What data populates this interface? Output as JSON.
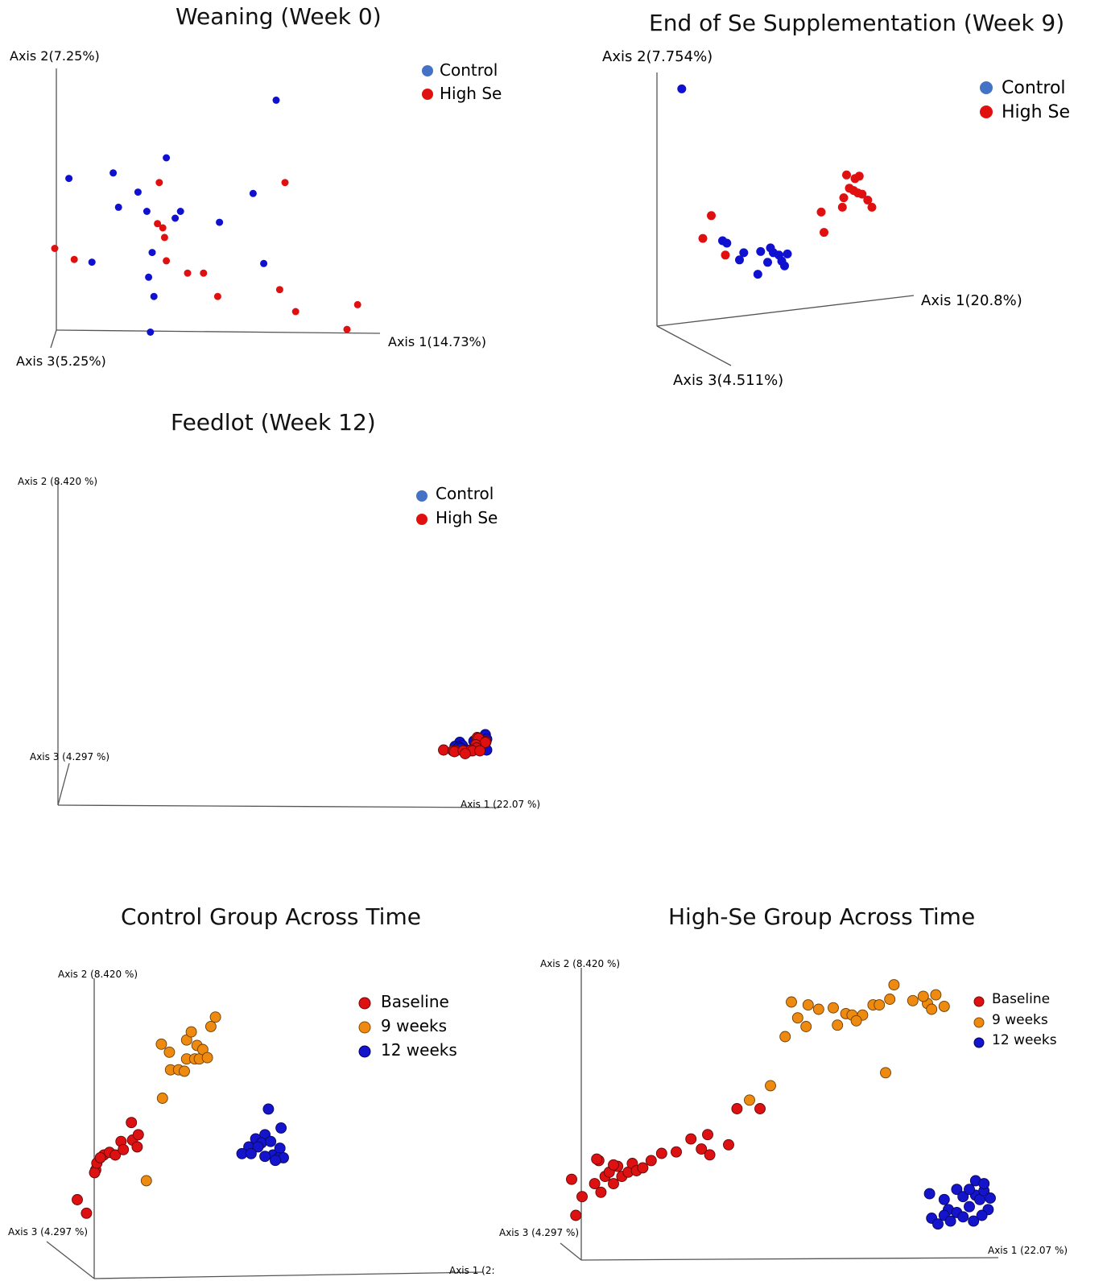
{
  "chart_data": [
    {
      "id": "w0",
      "type": "scatter",
      "title": "Weaning (Week 0)",
      "axis_labels": [
        "Axis 2(7.25%)",
        "Axis 1(14.73%)",
        "Axis 3(5.25%)"
      ],
      "legend": [
        "Control",
        "High Se"
      ],
      "colors": [
        "#1010d0",
        "#e01010"
      ],
      "legend_colors": [
        "#4472c4",
        "#e01010"
      ],
      "xlim": [
        -1,
        1
      ],
      "ylim": [
        -1,
        1
      ],
      "series": [
        {
          "name": "Control",
          "points": [
            [
              0.25,
              0.81
            ],
            [
              -0.67,
              0.28
            ],
            [
              -0.37,
              0.39
            ],
            [
              -0.92,
              0.24
            ],
            [
              -0.53,
              0.14
            ],
            [
              -0.64,
              0.03
            ],
            [
              -0.48,
              0.0
            ],
            [
              -0.29,
              0.0
            ],
            [
              -0.32,
              -0.05
            ],
            [
              -0.45,
              -0.3
            ],
            [
              -0.79,
              -0.37
            ],
            [
              -0.47,
              -0.48
            ],
            [
              -0.44,
              -0.62
            ],
            [
              0.12,
              0.13
            ],
            [
              0.18,
              -0.38
            ],
            [
              -0.07,
              -0.08
            ],
            [
              -0.46,
              -0.88
            ]
          ]
        },
        {
          "name": "High Se",
          "points": [
            [
              -0.41,
              0.21
            ],
            [
              -0.39,
              -0.12
            ],
            [
              -0.42,
              -0.09
            ],
            [
              -0.38,
              -0.19
            ],
            [
              0.3,
              0.21
            ],
            [
              -1.0,
              -0.27
            ],
            [
              -0.89,
              -0.35
            ],
            [
              -0.37,
              -0.36
            ],
            [
              -0.25,
              -0.45
            ],
            [
              -0.16,
              -0.45
            ],
            [
              -0.08,
              -0.62
            ],
            [
              0.27,
              -0.57
            ],
            [
              0.36,
              -0.73
            ],
            [
              0.65,
              -0.86
            ],
            [
              0.71,
              -0.68
            ]
          ]
        }
      ]
    },
    {
      "id": "w9",
      "type": "scatter",
      "title": "End of Se Supplementation (Week 9)",
      "axis_labels": [
        "Axis 2(7.754%)",
        "Axis 1(20.8%)",
        "Axis 3(4.511%)"
      ],
      "legend": [
        "Control",
        "High Se"
      ],
      "colors": [
        "#1010d0",
        "#e01010"
      ],
      "legend_colors": [
        "#4472c4",
        "#e01010"
      ],
      "xlim": [
        -1,
        1
      ],
      "ylim": [
        -1,
        1
      ],
      "series": [
        {
          "name": "Control",
          "points": [
            [
              -0.95,
              0.95
            ],
            [
              -0.66,
              -0.32
            ],
            [
              -0.63,
              -0.34
            ],
            [
              -0.51,
              -0.42
            ],
            [
              -0.54,
              -0.48
            ],
            [
              -0.39,
              -0.41
            ],
            [
              -0.34,
              -0.5
            ],
            [
              -0.32,
              -0.38
            ],
            [
              -0.3,
              -0.42
            ],
            [
              -0.26,
              -0.44
            ],
            [
              -0.24,
              -0.49
            ],
            [
              -0.22,
              -0.53
            ],
            [
              -0.2,
              -0.43
            ],
            [
              -0.41,
              -0.6
            ]
          ]
        },
        {
          "name": "High Se",
          "points": [
            [
              -0.74,
              -0.11
            ],
            [
              -0.8,
              -0.3
            ],
            [
              -0.64,
              -0.44
            ],
            [
              0.22,
              0.23
            ],
            [
              0.28,
              0.2
            ],
            [
              0.31,
              0.22
            ],
            [
              0.24,
              0.12
            ],
            [
              0.27,
              0.1
            ],
            [
              0.3,
              0.08
            ],
            [
              0.33,
              0.07
            ],
            [
              0.2,
              0.04
            ],
            [
              0.19,
              -0.04
            ],
            [
              0.37,
              0.02
            ],
            [
              0.04,
              -0.08
            ],
            [
              0.06,
              -0.25
            ],
            [
              0.4,
              -0.04
            ]
          ]
        }
      ]
    },
    {
      "id": "w12",
      "type": "scatter",
      "title": "Feedlot (Week 12)",
      "axis_labels": [
        "Axis 2 (8.420 %)",
        "Axis 1 (22.07 %)",
        "Axis 3 (4.297 %)"
      ],
      "legend": [
        "Control",
        "High Se"
      ],
      "colors": [
        "#1010d0",
        "#e01010"
      ],
      "legend_colors": [
        "#4472c4",
        "#e01010"
      ],
      "xlim": [
        -1,
        1
      ],
      "ylim": [
        -1,
        1
      ],
      "series": [
        {
          "name": "Control",
          "points": [
            [
              0.83,
              0.13
            ],
            [
              0.85,
              0.02
            ],
            [
              0.66,
              -0.03
            ],
            [
              0.83,
              -0.08
            ],
            [
              0.81,
              -0.14
            ],
            [
              0.45,
              -0.06
            ],
            [
              0.49,
              -0.14
            ],
            [
              0.38,
              -0.16
            ],
            [
              0.44,
              -0.18
            ],
            [
              0.46,
              -0.21
            ],
            [
              0.57,
              -0.27
            ],
            [
              0.6,
              -0.27
            ],
            [
              0.85,
              -0.25
            ],
            [
              0.55,
              -0.25
            ]
          ]
        },
        {
          "name": "High Se",
          "points": [
            [
              0.71,
              0.06
            ],
            [
              0.73,
              0.04
            ],
            [
              0.84,
              -0.04
            ],
            [
              0.83,
              -0.06
            ],
            [
              0.69,
              -0.12
            ],
            [
              0.7,
              -0.2
            ],
            [
              0.21,
              -0.25
            ],
            [
              0.35,
              -0.27
            ],
            [
              0.39,
              -0.27
            ],
            [
              0.37,
              -0.29
            ],
            [
              0.5,
              -0.27
            ],
            [
              0.62,
              -0.25
            ],
            [
              0.64,
              -0.27
            ],
            [
              0.75,
              -0.27
            ],
            [
              0.53,
              -0.34
            ]
          ]
        }
      ]
    },
    {
      "id": "ctrl",
      "type": "scatter",
      "title": "Control Group Across Time",
      "axis_labels": [
        "Axis 2 (8.420 %)",
        "Axis 1 (2:",
        "Axis 3 (4.297 %)"
      ],
      "legend": [
        "Baseline",
        "9 weeks",
        "12 weeks"
      ],
      "colors": [
        "#dd1111",
        "#ee8a10",
        "#1414cc"
      ],
      "legend_colors": [
        "#dd1111",
        "#ee8a10",
        "#1414cc"
      ],
      "xlim": [
        -1,
        1
      ],
      "ylim": [
        -1,
        1
      ],
      "series": [
        {
          "name": "Baseline",
          "points": [
            [
              -0.84,
              -0.5
            ],
            [
              -0.85,
              -0.52
            ],
            [
              -0.83,
              -0.45
            ],
            [
              -0.77,
              -0.39
            ],
            [
              -0.72,
              -0.37
            ],
            [
              -0.67,
              -0.39
            ],
            [
              -0.62,
              -0.29
            ],
            [
              -0.6,
              -0.35
            ],
            [
              -0.52,
              -0.28
            ],
            [
              -0.48,
              -0.33
            ],
            [
              -0.53,
              -0.15
            ],
            [
              -0.47,
              -0.24
            ],
            [
              -1.0,
              -0.72
            ],
            [
              -0.92,
              -0.82
            ],
            [
              -0.8,
              -0.41
            ]
          ]
        },
        {
          "name": "9 weeks",
          "points": [
            [
              -0.27,
              0.43
            ],
            [
              -0.2,
              0.37
            ],
            [
              -0.19,
              0.24
            ],
            [
              -0.12,
              0.24
            ],
            [
              -0.07,
              0.23
            ],
            [
              -0.05,
              0.32
            ],
            [
              -0.05,
              0.46
            ],
            [
              -0.01,
              0.52
            ],
            [
              0.02,
              0.32
            ],
            [
              0.04,
              0.42
            ],
            [
              0.06,
              0.32
            ],
            [
              0.09,
              0.39
            ],
            [
              0.13,
              0.33
            ],
            [
              0.16,
              0.56
            ],
            [
              0.2,
              0.63
            ],
            [
              -0.26,
              0.03
            ],
            [
              -0.4,
              -0.58
            ]
          ]
        },
        {
          "name": "12 weeks",
          "points": [
            [
              0.66,
              -0.05
            ],
            [
              0.77,
              -0.19
            ],
            [
              0.63,
              -0.24
            ],
            [
              0.55,
              -0.27
            ],
            [
              0.6,
              -0.3
            ],
            [
              0.68,
              -0.29
            ],
            [
              0.7,
              -0.39
            ],
            [
              0.76,
              -0.34
            ],
            [
              0.49,
              -0.33
            ],
            [
              0.57,
              -0.33
            ],
            [
              0.63,
              -0.4
            ],
            [
              0.75,
              -0.41
            ],
            [
              0.79,
              -0.41
            ],
            [
              0.72,
              -0.43
            ],
            [
              0.43,
              -0.38
            ],
            [
              0.51,
              -0.38
            ]
          ]
        }
      ]
    },
    {
      "id": "hise",
      "type": "scatter",
      "title": "High-Se Group Across Time",
      "axis_labels": [
        "Axis 2 (8.420 %)",
        "Axis 1 (22.07 %)",
        "Axis 3 (4.297 %)"
      ],
      "legend": [
        "Baseline",
        "9 weeks",
        "12 weeks"
      ],
      "colors": [
        "#dd1111",
        "#ee8a10",
        "#1414cc"
      ],
      "legend_colors": [
        "#dd1111",
        "#ee8a10",
        "#1414cc"
      ],
      "xlim": [
        -1,
        1
      ],
      "ylim": [
        -1,
        1
      ],
      "series": [
        {
          "name": "Baseline",
          "points": [
            [
              -0.95,
              -0.61
            ],
            [
              -0.98,
              -0.74
            ],
            [
              -0.89,
              -0.52
            ],
            [
              -0.86,
              -0.58
            ],
            [
              -0.84,
              -0.47
            ],
            [
              -0.82,
              -0.44
            ],
            [
              -0.8,
              -0.52
            ],
            [
              -0.78,
              -0.4
            ],
            [
              -0.76,
              -0.47
            ],
            [
              -0.73,
              -0.44
            ],
            [
              -0.71,
              -0.38
            ],
            [
              -0.69,
              -0.43
            ],
            [
              -0.66,
              -0.41
            ],
            [
              -0.62,
              -0.36
            ],
            [
              -0.57,
              -0.31
            ],
            [
              -0.5,
              -0.3
            ],
            [
              -0.43,
              -0.21
            ],
            [
              -0.38,
              -0.28
            ],
            [
              -0.35,
              -0.18
            ],
            [
              -0.34,
              -0.32
            ],
            [
              -0.25,
              -0.25
            ],
            [
              -0.21,
              0.0
            ],
            [
              -0.1,
              0.0
            ],
            [
              -0.87,
              -0.36
            ],
            [
              -0.8,
              -0.39
            ],
            [
              -1.0,
              -0.49
            ],
            [
              -0.88,
              -0.35
            ]
          ]
        },
        {
          "name": "9 weeks",
          "points": [
            [
              -0.15,
              0.06
            ],
            [
              -0.05,
              0.16
            ],
            [
              0.02,
              0.5
            ],
            [
              0.05,
              0.74
            ],
            [
              0.08,
              0.63
            ],
            [
              0.13,
              0.72
            ],
            [
              0.18,
              0.69
            ],
            [
              0.25,
              0.7
            ],
            [
              0.27,
              0.58
            ],
            [
              0.31,
              0.66
            ],
            [
              0.34,
              0.65
            ],
            [
              0.39,
              0.65
            ],
            [
              0.44,
              0.72
            ],
            [
              0.47,
              0.72
            ],
            [
              0.52,
              0.76
            ],
            [
              0.54,
              0.86
            ],
            [
              0.63,
              0.75
            ],
            [
              0.7,
              0.73
            ],
            [
              0.72,
              0.69
            ],
            [
              0.78,
              0.71
            ],
            [
              0.68,
              0.78
            ],
            [
              0.74,
              0.79
            ],
            [
              0.12,
              0.57
            ],
            [
              0.36,
              0.61
            ],
            [
              0.5,
              0.25
            ]
          ]
        },
        {
          "name": "12 weeks",
          "points": [
            [
              0.71,
              -0.59
            ],
            [
              0.78,
              -0.63
            ],
            [
              0.84,
              -0.56
            ],
            [
              0.87,
              -0.61
            ],
            [
              0.9,
              -0.68
            ],
            [
              0.93,
              -0.6
            ],
            [
              0.95,
              -0.63
            ],
            [
              0.97,
              -0.57
            ],
            [
              0.99,
              -0.7
            ],
            [
              1.0,
              -0.62
            ],
            [
              0.8,
              -0.7
            ],
            [
              0.84,
              -0.72
            ],
            [
              0.87,
              -0.75
            ],
            [
              0.92,
              -0.78
            ],
            [
              0.96,
              -0.74
            ],
            [
              0.72,
              -0.76
            ],
            [
              0.75,
              -0.8
            ],
            [
              0.93,
              -0.5
            ],
            [
              0.97,
              -0.52
            ],
            [
              0.9,
              -0.56
            ],
            [
              0.78,
              -0.74
            ],
            [
              0.81,
              -0.78
            ]
          ]
        }
      ]
    }
  ]
}
